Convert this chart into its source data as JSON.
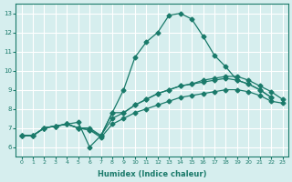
{
  "title": "",
  "xlabel": "Humidex (Indice chaleur)",
  "ylabel": "",
  "bg_color": "#d6eeee",
  "grid_color": "#ffffff",
  "line_color": "#1a7a6a",
  "x_ticks": [
    0,
    1,
    2,
    3,
    4,
    5,
    6,
    7,
    8,
    9,
    10,
    11,
    12,
    13,
    14,
    15,
    16,
    17,
    18,
    19,
    20,
    21,
    22,
    23
  ],
  "y_ticks": [
    6,
    7,
    8,
    9,
    10,
    11,
    12,
    13
  ],
  "ylim": [
    5.5,
    13.5
  ],
  "xlim": [
    -0.5,
    23.5
  ],
  "lines": [
    {
      "x": [
        0,
        1,
        2,
        3,
        4,
        5,
        6,
        7,
        8,
        9,
        10,
        11,
        12,
        13,
        14,
        15,
        16,
        17,
        18,
        19,
        20,
        21,
        22
      ],
      "y": [
        6.6,
        6.6,
        7.0,
        7.1,
        7.2,
        7.3,
        6.0,
        6.6,
        7.8,
        9.0,
        10.7,
        11.5,
        12.0,
        12.9,
        13.0,
        12.7,
        11.8,
        10.8,
        10.2,
        9.5,
        9.3,
        9.0,
        8.6
      ]
    },
    {
      "x": [
        0,
        1,
        2,
        3,
        4,
        5,
        6,
        7,
        8,
        9,
        10,
        11,
        12,
        13,
        14,
        15,
        16,
        17,
        18,
        19,
        20,
        21,
        22
      ],
      "y": [
        6.6,
        6.6,
        7.0,
        7.1,
        7.2,
        7.0,
        6.9,
        6.6,
        7.8,
        7.8,
        8.2,
        8.5,
        8.8,
        9.0,
        9.2,
        9.3,
        9.4,
        9.5,
        9.6,
        9.5,
        9.3,
        9.0,
        8.6
      ]
    },
    {
      "x": [
        0,
        1,
        2,
        3,
        4,
        5,
        6,
        7,
        8,
        9,
        10,
        11,
        12,
        13,
        14,
        15,
        16,
        17,
        18,
        19,
        20,
        21,
        22,
        23
      ],
      "y": [
        6.6,
        6.6,
        7.0,
        7.1,
        7.2,
        7.0,
        6.9,
        6.5,
        7.2,
        7.5,
        7.8,
        8.0,
        8.2,
        8.4,
        8.6,
        8.7,
        8.8,
        8.9,
        9.0,
        9.0,
        8.9,
        8.7,
        8.4,
        8.3
      ]
    },
    {
      "x": [
        0,
        1,
        2,
        3,
        4,
        5,
        6,
        7,
        8,
        9,
        10,
        11,
        12,
        13,
        14,
        15,
        16,
        17,
        18,
        19,
        20,
        21,
        22,
        23
      ],
      "y": [
        6.6,
        6.6,
        7.0,
        7.1,
        7.2,
        7.0,
        7.0,
        6.6,
        7.5,
        7.8,
        8.2,
        8.5,
        8.8,
        9.0,
        9.2,
        9.3,
        9.5,
        9.6,
        9.7,
        9.7,
        9.5,
        9.2,
        8.9,
        8.5
      ]
    }
  ]
}
